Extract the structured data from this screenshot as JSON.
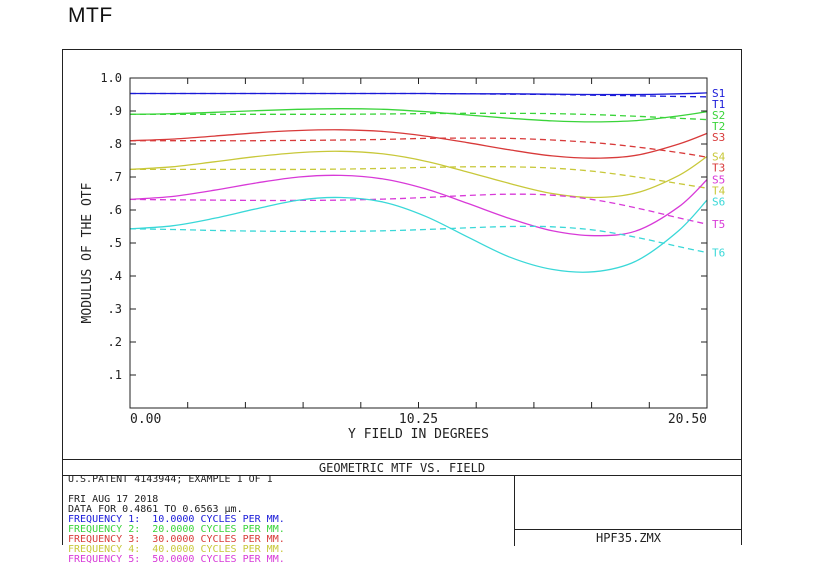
{
  "page_title": "MTF",
  "chart_data": {
    "type": "line",
    "title": "GEOMETRIC MTF VS. FIELD",
    "xlabel": "Y FIELD IN DEGREES",
    "ylabel": "MODULUS OF THE OTF",
    "xlim": [
      0,
      20.5
    ],
    "ylim": [
      0,
      1.0
    ],
    "x_ticks": [
      "0.00",
      "10.25",
      "20.50"
    ],
    "y_ticks": [
      "1.0",
      ".9",
      ".8",
      ".7",
      ".6",
      ".5",
      ".4",
      ".3",
      ".2",
      ".1"
    ],
    "x": [
      0,
      1.5,
      3.0,
      4.5,
      6.0,
      7.5,
      9.0,
      10.5,
      12.0,
      13.5,
      15.0,
      16.5,
      18.0,
      19.5,
      20.5
    ],
    "series": [
      {
        "name": "S1",
        "color": "#1a1ad8",
        "style": "solid",
        "values": [
          0.953,
          0.953,
          0.953,
          0.953,
          0.953,
          0.953,
          0.953,
          0.953,
          0.952,
          0.952,
          0.951,
          0.95,
          0.95,
          0.952,
          0.955
        ]
      },
      {
        "name": "T1",
        "color": "#1a1ad8",
        "style": "dashed",
        "values": [
          0.953,
          0.953,
          0.953,
          0.953,
          0.953,
          0.953,
          0.953,
          0.953,
          0.952,
          0.951,
          0.95,
          0.948,
          0.946,
          0.944,
          0.943
        ]
      },
      {
        "name": "S2",
        "color": "#3ad43a",
        "style": "solid",
        "values": [
          0.89,
          0.892,
          0.896,
          0.901,
          0.905,
          0.907,
          0.905,
          0.898,
          0.888,
          0.878,
          0.87,
          0.867,
          0.871,
          0.885,
          0.898
        ]
      },
      {
        "name": "T2",
        "color": "#3ad43a",
        "style": "dashed",
        "values": [
          0.89,
          0.89,
          0.89,
          0.89,
          0.89,
          0.89,
          0.891,
          0.892,
          0.893,
          0.893,
          0.892,
          0.889,
          0.884,
          0.878,
          0.874
        ]
      },
      {
        "name": "S3",
        "color": "#d83a3a",
        "style": "solid",
        "values": [
          0.81,
          0.815,
          0.824,
          0.834,
          0.841,
          0.843,
          0.838,
          0.824,
          0.804,
          0.782,
          0.764,
          0.757,
          0.766,
          0.8,
          0.832
        ]
      },
      {
        "name": "T3",
        "color": "#d83a3a",
        "style": "dashed",
        "values": [
          0.81,
          0.81,
          0.81,
          0.81,
          0.811,
          0.812,
          0.814,
          0.817,
          0.818,
          0.817,
          0.812,
          0.804,
          0.791,
          0.774,
          0.76
        ]
      },
      {
        "name": "S4",
        "color": "#c8c83a",
        "style": "solid",
        "values": [
          0.723,
          0.731,
          0.746,
          0.762,
          0.774,
          0.778,
          0.77,
          0.748,
          0.715,
          0.68,
          0.65,
          0.638,
          0.652,
          0.705,
          0.762
        ]
      },
      {
        "name": "T4",
        "color": "#c8c83a",
        "style": "dashed",
        "values": [
          0.723,
          0.723,
          0.723,
          0.723,
          0.723,
          0.724,
          0.726,
          0.729,
          0.731,
          0.731,
          0.727,
          0.717,
          0.7,
          0.68,
          0.666
        ]
      },
      {
        "name": "S5",
        "color": "#d83ad8",
        "style": "solid",
        "values": [
          0.632,
          0.641,
          0.66,
          0.682,
          0.7,
          0.705,
          0.694,
          0.664,
          0.62,
          0.574,
          0.537,
          0.522,
          0.537,
          0.61,
          0.692
        ]
      },
      {
        "name": "T5",
        "color": "#d83ad8",
        "style": "dashed",
        "values": [
          0.632,
          0.631,
          0.63,
          0.629,
          0.629,
          0.63,
          0.633,
          0.638,
          0.644,
          0.648,
          0.645,
          0.631,
          0.606,
          0.576,
          0.557
        ]
      },
      {
        "name": "S6",
        "color": "#3ad8d8",
        "style": "solid",
        "values": [
          0.543,
          0.552,
          0.575,
          0.604,
          0.63,
          0.638,
          0.624,
          0.581,
          0.518,
          0.457,
          0.42,
          0.413,
          0.446,
          0.538,
          0.63
        ]
      },
      {
        "name": "T6",
        "color": "#3ad8d8",
        "style": "dashed",
        "values": [
          0.543,
          0.541,
          0.538,
          0.536,
          0.535,
          0.535,
          0.537,
          0.541,
          0.546,
          0.55,
          0.549,
          0.539,
          0.517,
          0.489,
          0.471
        ]
      }
    ],
    "legend_placement": "right"
  },
  "info": {
    "lines": [
      {
        "text": "U.S.PATENT 4143944; EXAMPLE 1 OF 1",
        "color": "#222222"
      },
      {
        "text": "",
        "color": "#222222"
      },
      {
        "text": "FRI AUG 17 2018",
        "color": "#222222"
      },
      {
        "text": "DATA FOR 0.4861 TO 0.6563 µm.",
        "color": "#222222"
      },
      {
        "text": "FREQUENCY 1:  10.0000 CYCLES PER MM.",
        "color": "#1a1ad8"
      },
      {
        "text": "FREQUENCY 2:  20.0000 CYCLES PER MM.",
        "color": "#3ad43a"
      },
      {
        "text": "FREQUENCY 3:  30.0000 CYCLES PER MM.",
        "color": "#d83a3a"
      },
      {
        "text": "FREQUENCY 4:  40.0000 CYCLES PER MM.",
        "color": "#c8c83a"
      },
      {
        "text": "FREQUENCY 5:  50.0000 CYCLES PER MM.",
        "color": "#d83ad8"
      }
    ],
    "filename": "HPF35.ZMX"
  }
}
